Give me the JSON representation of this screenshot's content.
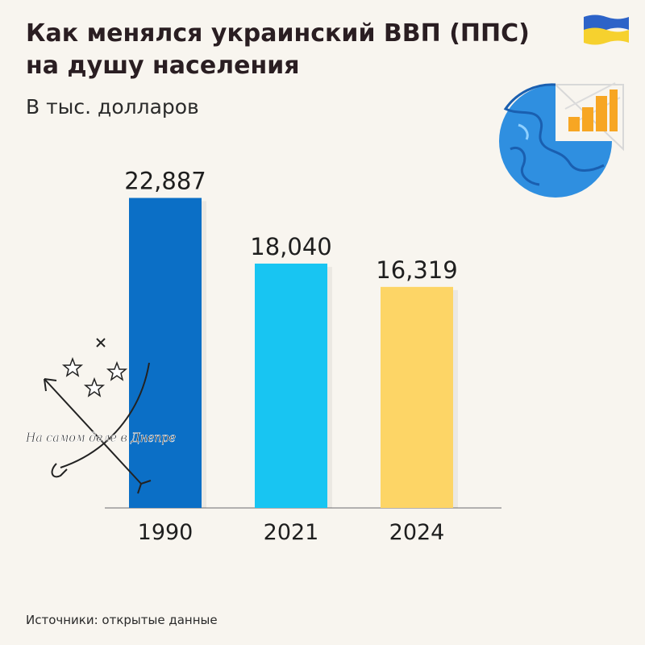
{
  "header": {
    "title_line1": "Как менялся украинский ВВП (ППС)",
    "title_line2": "на душу населения",
    "subtitle": "В тыс. долларов"
  },
  "chart_data": {
    "type": "bar",
    "categories": [
      "1990",
      "2021",
      "2024"
    ],
    "values": [
      22.887,
      18.04,
      16.319
    ],
    "value_labels": [
      "22,887",
      "18,040",
      "16,319"
    ],
    "bar_colors": [
      "#0b6fc6",
      "#18c5f2",
      "#fdd566"
    ],
    "ylim": [
      0,
      25
    ],
    "grid": false,
    "legend": "none"
  },
  "footer": {
    "source": "Источники: открытые данные"
  },
  "watermark": {
    "text": "На самом деле в Днепре"
  },
  "icons": {
    "flag": "ukraine-flag-icon",
    "globe": "globe-chart-icon"
  },
  "colors": {
    "background": "#f8f5ef",
    "flag_blue": "#2d63c8",
    "flag_yellow": "#f6d12e"
  }
}
